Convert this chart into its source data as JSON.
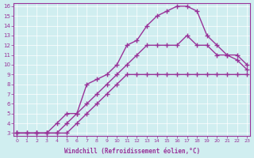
{
  "xlabel": "Windchill (Refroidissement éolien,°C)",
  "bg_color": "#d0eef0",
  "line_color": "#993399",
  "xlim": [
    0,
    23
  ],
  "ylim": [
    3,
    16
  ],
  "xticks": [
    0,
    1,
    2,
    3,
    4,
    5,
    6,
    7,
    8,
    9,
    10,
    11,
    12,
    13,
    14,
    15,
    16,
    17,
    18,
    19,
    20,
    21,
    22,
    23
  ],
  "yticks": [
    3,
    4,
    5,
    6,
    7,
    8,
    9,
    10,
    11,
    12,
    13,
    14,
    15,
    16
  ],
  "line1_x": [
    0,
    1,
    2,
    3,
    4,
    5,
    6,
    7,
    8,
    9,
    10,
    11,
    12,
    13,
    14,
    15,
    16,
    17,
    18,
    19,
    20,
    21,
    22,
    23
  ],
  "line1_y": [
    3,
    3,
    3,
    3,
    3,
    3,
    4,
    5,
    6,
    7,
    8,
    9,
    9,
    9,
    9,
    9,
    9,
    9,
    9,
    9,
    9,
    9,
    9,
    9
  ],
  "line2_x": [
    0,
    1,
    2,
    3,
    4,
    5,
    6,
    7,
    8,
    9,
    10,
    11,
    12,
    13,
    14,
    15,
    16,
    17,
    18,
    19,
    20,
    21,
    22,
    23
  ],
  "line2_y": [
    3,
    3,
    3,
    3,
    4,
    5,
    5,
    6,
    7,
    8,
    9,
    10,
    11,
    12,
    12,
    12,
    12,
    13,
    12,
    12,
    11,
    11,
    11,
    10
  ],
  "line3_x": [
    0,
    2,
    3,
    4,
    5,
    6,
    7,
    8,
    9,
    10,
    11,
    12,
    13,
    14,
    15,
    16,
    17,
    18,
    19,
    20,
    21,
    22,
    23
  ],
  "line3_y": [
    3,
    3,
    3,
    3,
    4,
    5,
    8,
    8.5,
    9,
    10,
    12,
    12.5,
    14,
    15,
    15.5,
    16,
    16,
    15.5,
    13,
    12,
    11,
    10.5,
    9.5
  ]
}
